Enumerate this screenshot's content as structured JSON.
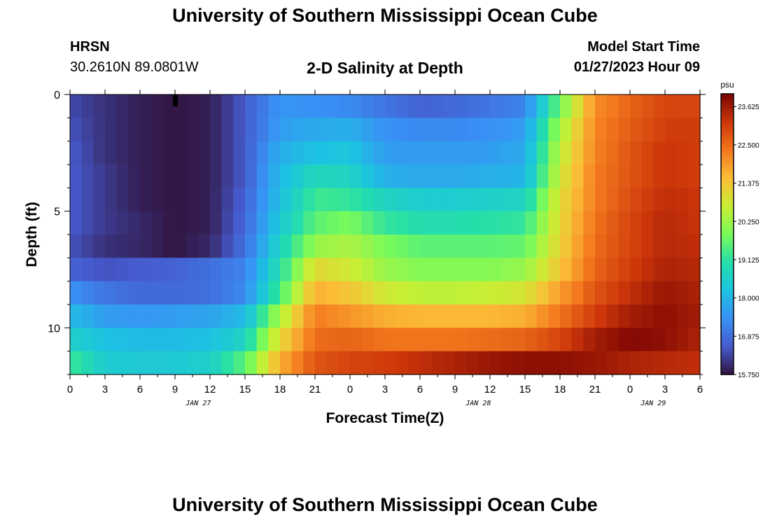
{
  "header": {
    "main_title": "University of Southern Mississippi Ocean Cube",
    "station_name": "HRSN",
    "station_coords": "30.2610N  89.0801W",
    "chart_title": "2-D Salinity at Depth",
    "model_start_label": "Model Start Time",
    "model_start_value": "01/27/2023 Hour 09"
  },
  "footer": {
    "title": "University of Southern Mississippi Ocean Cube"
  },
  "chart_data": {
    "type": "heatmap",
    "title": "2-D Salinity at Depth",
    "xlabel": "Forecast Time(Z)",
    "ylabel": "Depth (ft)",
    "x_hours": [
      0,
      3,
      6,
      9,
      12,
      15,
      18,
      21,
      24,
      27,
      30,
      33,
      36,
      39,
      42,
      45,
      48,
      51,
      54
    ],
    "xtick_labels": [
      "0",
      "3",
      "6",
      "9",
      "12",
      "15",
      "18",
      "21",
      "0",
      "3",
      "6",
      "9",
      "12",
      "15",
      "18",
      "21",
      "0",
      "3",
      "6"
    ],
    "date_labels": [
      {
        "hour": 11,
        "label": "JAN 27"
      },
      {
        "hour": 35,
        "label": "JAN 28"
      },
      {
        "hour": 50,
        "label": "JAN 29"
      }
    ],
    "xlim": [
      0,
      54
    ],
    "ylim": [
      12,
      0
    ],
    "yticks": [
      0,
      5,
      10
    ],
    "current_time_marker_hour": 9,
    "colorbar": {
      "unit": "psu",
      "min": 15.75,
      "max": 24.0,
      "tick_values": [
        15.75,
        16.875,
        18.0,
        19.125,
        20.25,
        21.375,
        22.5,
        23.625
      ],
      "tick_labels": [
        "15.750",
        "16.875",
        "18.000",
        "19.125",
        "20.250",
        "21.375",
        "22.500",
        "23.625"
      ]
    },
    "depth_levels_ft": [
      0.5,
      1.5,
      2.5,
      3.5,
      4.5,
      5.5,
      6.5,
      7.5,
      8.5,
      9.5,
      10.5,
      11.5
    ],
    "salinity_psu": [
      [
        16.4,
        16.1,
        15.9,
        15.8,
        15.9,
        16.6,
        17.5,
        17.4,
        17.3,
        17.0,
        16.7,
        16.8,
        17.0,
        17.2,
        19.8,
        22.1,
        22.6,
        23.0,
        23.0
      ],
      [
        16.5,
        16.1,
        15.9,
        15.8,
        15.9,
        16.6,
        17.6,
        17.8,
        17.9,
        17.4,
        17.3,
        17.3,
        17.4,
        17.6,
        20.3,
        22.2,
        22.7,
        23.1,
        23.1
      ],
      [
        16.6,
        16.1,
        15.9,
        15.8,
        15.9,
        16.6,
        17.9,
        18.2,
        18.3,
        17.6,
        17.6,
        17.6,
        17.6,
        17.8,
        20.6,
        22.2,
        22.8,
        23.2,
        23.1
      ],
      [
        16.6,
        16.2,
        15.9,
        15.8,
        15.9,
        16.6,
        18.1,
        18.8,
        18.7,
        17.9,
        17.8,
        17.8,
        17.9,
        18.0,
        20.8,
        22.3,
        22.8,
        23.2,
        23.1
      ],
      [
        16.6,
        16.2,
        15.9,
        15.8,
        15.9,
        16.7,
        18.2,
        19.3,
        19.2,
        18.7,
        18.5,
        18.5,
        18.6,
        18.7,
        21.0,
        22.3,
        22.9,
        23.3,
        23.2
      ],
      [
        16.6,
        16.2,
        16.0,
        15.8,
        15.9,
        16.8,
        18.4,
        19.6,
        19.9,
        19.2,
        19.0,
        19.0,
        19.1,
        19.2,
        21.1,
        22.4,
        23.0,
        23.4,
        23.2
      ],
      [
        16.5,
        16.1,
        16.0,
        15.8,
        16.0,
        16.9,
        18.7,
        20.2,
        20.4,
        19.9,
        19.6,
        19.6,
        19.6,
        19.7,
        21.2,
        22.5,
        23.0,
        23.4,
        23.3
      ],
      [
        16.7,
        16.5,
        16.6,
        16.7,
        16.9,
        17.2,
        19.0,
        21.1,
        20.8,
        20.2,
        20.0,
        20.0,
        20.0,
        20.2,
        21.4,
        22.6,
        23.1,
        23.5,
        23.4
      ],
      [
        17.4,
        17.0,
        16.8,
        16.8,
        16.9,
        17.3,
        19.4,
        21.7,
        21.4,
        20.8,
        20.6,
        20.6,
        20.7,
        20.9,
        21.9,
        22.8,
        23.3,
        23.7,
        23.5
      ],
      [
        18.1,
        17.6,
        17.5,
        17.6,
        17.7,
        18.1,
        20.4,
        22.3,
        22.0,
        21.7,
        21.6,
        21.6,
        21.6,
        21.7,
        22.4,
        23.1,
        23.6,
        23.8,
        23.6
      ],
      [
        18.6,
        18.2,
        18.1,
        18.1,
        18.2,
        18.7,
        21.1,
        22.5,
        22.6,
        22.4,
        22.4,
        22.4,
        22.5,
        22.6,
        23.0,
        23.6,
        23.9,
        23.8,
        23.5
      ],
      [
        19.3,
        18.5,
        18.4,
        18.4,
        18.6,
        19.6,
        21.7,
        22.8,
        23.0,
        23.1,
        23.3,
        23.5,
        23.7,
        23.8,
        23.8,
        23.7,
        23.5,
        23.4,
        23.3
      ]
    ]
  }
}
